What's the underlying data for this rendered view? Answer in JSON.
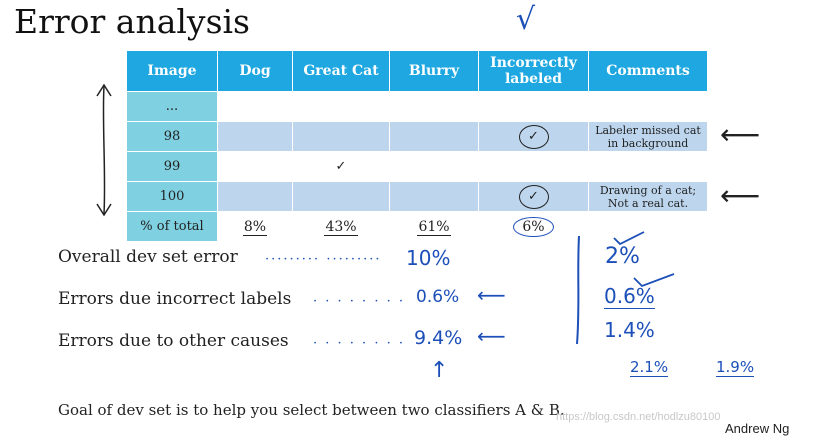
{
  "title": "Error analysis",
  "table": {
    "headers": [
      "Image",
      "Dog",
      "Great Cat",
      "Blurry",
      "Incorrectly labeled",
      "Comments"
    ],
    "rows": [
      {
        "image": "...",
        "dog": "",
        "great_cat": "",
        "blurry": "",
        "incorrect": "",
        "comment_1": "",
        "comment_2": ""
      },
      {
        "image": "98",
        "dog": "",
        "great_cat": "",
        "blurry": "",
        "incorrect": "✓",
        "comment_1": "Labeler missed cat",
        "comment_2": "in background"
      },
      {
        "image": "99",
        "dog": "",
        "great_cat": "✓",
        "blurry": "",
        "incorrect": "",
        "comment_1": "",
        "comment_2": ""
      },
      {
        "image": "100",
        "dog": "",
        "great_cat": "",
        "blurry": "",
        "incorrect": "✓",
        "comment_1": "Drawing of a cat;",
        "comment_2": "Not a real cat."
      }
    ],
    "total": {
      "label": "% of total",
      "dog": "8%",
      "great_cat": "43%",
      "blurry": "61%",
      "incorrect": "6%"
    }
  },
  "sheet_annotations": {
    "top_check": "√",
    "row_arrow": "⟵"
  },
  "labels": {
    "overall": "Overall dev set error",
    "incorrect": "Errors due incorrect labels",
    "other": "Errors due to other causes"
  },
  "handwritten": {
    "overall_left": "10%",
    "incorrect_left": "0.6%",
    "other_left": "9.4%",
    "arrow_left": "⟵",
    "up_arrow": "↑",
    "right_overall": "2%",
    "right_incorrect": "0.6%",
    "right_other": "1.4%",
    "bottom_a": "2.1%",
    "bottom_b": "1.9%"
  },
  "footer": "Goal of dev set is to help you select between two classifiers A & B.",
  "author": "Andrew Ng",
  "watermark": "https://blog.csdn.net/hodlzu80100",
  "colors": {
    "header": "#1ea7e0",
    "index_col": "#7fd0e0",
    "shade_row": "#bdd6ee",
    "ink": "#1c4fb8"
  }
}
